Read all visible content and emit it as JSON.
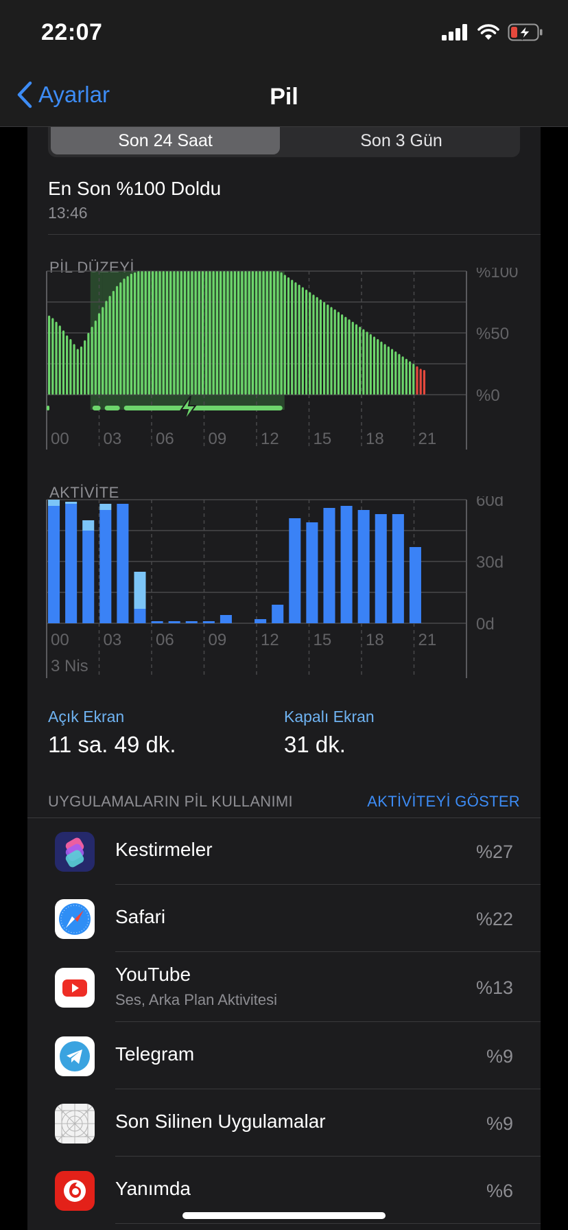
{
  "status_bar": {
    "time": "22:07"
  },
  "nav": {
    "back_label": "Ayarlar",
    "title": "Pil"
  },
  "segments": [
    "Son 24 Saat",
    "Son 3 Gün"
  ],
  "last_full": {
    "label": "En Son %100 Doldu",
    "time": "13:46"
  },
  "battery_section": {
    "label": "PİL DÜZEYİ"
  },
  "activity_section": {
    "label": "AKTİVİTE",
    "date_label": "3 Nis"
  },
  "chart_data": [
    {
      "type": "bar",
      "title": "PİL DÜZEYİ",
      "y_ticks": [
        "%100",
        "%50",
        "%0"
      ],
      "x_ticks": [
        "00",
        "03",
        "06",
        "09",
        "12",
        "15",
        "18",
        "21"
      ],
      "ylim": [
        0,
        100
      ],
      "series": [
        {
          "name": "battery",
          "values": [
            64,
            62,
            59,
            56,
            52,
            48,
            45,
            41,
            37,
            39,
            44,
            50,
            55,
            60,
            66,
            71,
            76,
            80,
            84,
            88,
            91,
            94,
            96,
            98,
            99,
            100,
            100,
            100,
            100,
            100,
            100,
            100,
            100,
            100,
            100,
            100,
            100,
            100,
            100,
            100,
            100,
            100,
            100,
            100,
            100,
            100,
            100,
            100,
            100,
            100,
            100,
            100,
            100,
            100,
            100,
            100,
            100,
            100,
            100,
            100,
            100,
            100,
            100,
            100,
            100,
            99,
            97,
            95,
            93,
            91,
            89,
            87,
            85,
            83,
            81,
            79,
            77,
            75,
            73,
            71,
            69,
            67,
            65,
            63,
            61,
            59,
            57,
            55,
            53,
            51,
            49,
            47,
            45,
            43,
            41,
            39,
            37,
            35,
            33,
            31,
            29,
            27,
            25,
            23,
            21,
            20
          ]
        }
      ],
      "low_battery_tail": 3,
      "charging_periods_hours": [
        [
          2.5,
          3.2
        ],
        [
          3.2,
          4.3
        ],
        [
          4.3,
          13.6
        ]
      ]
    },
    {
      "type": "bar",
      "title": "AKTİVİTE",
      "y_ticks": [
        "60d",
        "30d",
        "0d"
      ],
      "x_ticks": [
        "00",
        "03",
        "06",
        "09",
        "12",
        "15",
        "18",
        "21"
      ],
      "ylim": [
        0,
        60
      ],
      "series": [
        {
          "name": "screen_on",
          "values": [
            57,
            58,
            45,
            55,
            58,
            7,
            1,
            1,
            1,
            1,
            4,
            0,
            2,
            9,
            51,
            49,
            56,
            57,
            55,
            53,
            53,
            37
          ]
        },
        {
          "name": "screen_off",
          "values": [
            3,
            1,
            5,
            3,
            0,
            18,
            0,
            0,
            0,
            0,
            0,
            0,
            0,
            0,
            0,
            0,
            0,
            0,
            0,
            0,
            0,
            0
          ]
        }
      ]
    }
  ],
  "stats": {
    "screen_on_label": "Açık Ekran",
    "screen_on_value": "11 sa. 49 dk.",
    "screen_off_label": "Kapalı Ekran",
    "screen_off_value": "31 dk."
  },
  "apps_section": {
    "label": "UYGULAMALARIN PİL KULLANIMI",
    "action": "AKTİVİTEYİ GÖSTER"
  },
  "apps": [
    {
      "name": "Kestirmeler",
      "subtitle": "",
      "percent": "%27",
      "icon": "shortcuts-icon"
    },
    {
      "name": "Safari",
      "subtitle": "",
      "percent": "%22",
      "icon": "safari-icon"
    },
    {
      "name": "YouTube",
      "subtitle": "Ses, Arka Plan Aktivitesi",
      "percent": "%13",
      "icon": "youtube-icon"
    },
    {
      "name": "Telegram",
      "subtitle": "",
      "percent": "%9",
      "icon": "telegram-icon"
    },
    {
      "name": "Son Silinen Uygulamalar",
      "subtitle": "",
      "percent": "%9",
      "icon": "deleted-apps-icon"
    },
    {
      "name": "Yanımda",
      "subtitle": "",
      "percent": "%6",
      "icon": "vodafone-icon"
    }
  ],
  "colors": {
    "battery_green": "#6dd66c",
    "low_red": "#e5493d",
    "activity_blue": "#3a82f6",
    "activity_light": "#7cc5f7",
    "link_blue": "#3d8cf5"
  }
}
